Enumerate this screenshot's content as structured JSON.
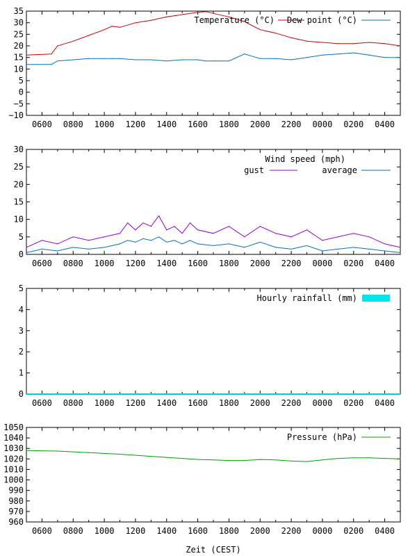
{
  "xlabel": "Zeit (CEST)",
  "x_ticks": [
    "0600",
    "0800",
    "1000",
    "1200",
    "1400",
    "1600",
    "1800",
    "2000",
    "2200",
    "0000",
    "0200",
    "0400"
  ],
  "x_range_hours": [
    5.0,
    29.0
  ],
  "chart_data": [
    {
      "type": "line",
      "name": "temperature-chart",
      "ylim": [
        -10,
        35
      ],
      "y_ticks": [
        "35",
        "30",
        "25",
        "20",
        "15",
        "10",
        "5",
        "0",
        "−5",
        "−10"
      ],
      "y_tick_values": [
        35,
        30,
        25,
        20,
        15,
        10,
        5,
        0,
        -5,
        -10
      ],
      "legend": "top-right",
      "x_hours": [
        5,
        6.6,
        7,
        8,
        9,
        10,
        10.5,
        11,
        12,
        13,
        14,
        15,
        16,
        16.5,
        17,
        18,
        19,
        20,
        21,
        22,
        23,
        24,
        25,
        26,
        27,
        28,
        29
      ],
      "series": [
        {
          "name": "Temperature (°C)",
          "color": "#cc0000",
          "values": [
            16,
            16.5,
            20,
            22,
            24.5,
            27,
            28.5,
            28,
            30,
            31,
            32.5,
            33.5,
            34.5,
            34.8,
            34,
            32.5,
            30.5,
            27,
            25.5,
            23.5,
            22,
            21.5,
            21,
            21,
            21.5,
            21,
            20
          ]
        },
        {
          "name": "Dew point (°C)",
          "color": "#0070c0",
          "values": [
            12,
            12,
            13.5,
            14,
            14.5,
            14.5,
            14.5,
            14.5,
            14,
            14,
            13.5,
            14,
            14,
            13.5,
            13.5,
            13.5,
            16.5,
            14.5,
            14.5,
            14,
            15,
            16,
            16.5,
            17,
            16,
            15,
            15
          ]
        }
      ]
    },
    {
      "type": "line",
      "name": "wind-chart",
      "title": "Wind speed (mph)",
      "ylim": [
        0,
        30
      ],
      "y_ticks": [
        "30",
        "25",
        "20",
        "15",
        "10",
        "5",
        "0"
      ],
      "y_tick_values": [
        30,
        25,
        20,
        15,
        10,
        5,
        0
      ],
      "legend": "top-right",
      "x_hours": [
        5,
        6,
        7,
        8,
        9,
        10,
        11,
        11.5,
        12,
        12.5,
        13,
        13.5,
        14,
        14.5,
        15,
        15.5,
        16,
        17,
        18,
        19,
        20,
        21,
        22,
        23,
        24,
        25,
        26,
        27,
        28,
        29
      ],
      "series": [
        {
          "name": "gust",
          "color": "#9400d3",
          "values": [
            2,
            4,
            3,
            5,
            4,
            5,
            6,
            9,
            7,
            9,
            8,
            11,
            7,
            8,
            6,
            9,
            7,
            6,
            8,
            5,
            8,
            6,
            5,
            7,
            4,
            5,
            6,
            5,
            3,
            2
          ]
        },
        {
          "name": "average",
          "color": "#0070c0",
          "values": [
            0.5,
            1.5,
            1,
            2,
            1.5,
            2,
            3,
            4,
            3.5,
            4.5,
            4,
            5,
            3.5,
            4,
            3,
            4,
            3,
            2.5,
            3,
            2,
            3.5,
            2,
            1.5,
            2.5,
            1,
            1.5,
            2,
            1.5,
            1,
            0.5
          ]
        }
      ]
    },
    {
      "type": "bar",
      "name": "rainfall-chart",
      "ylim": [
        0,
        5
      ],
      "y_ticks": [
        "5",
        "4",
        "3",
        "2",
        "1",
        "0"
      ],
      "y_tick_values": [
        5,
        4,
        3,
        2,
        1,
        0
      ],
      "legend": "top-right",
      "series": [
        {
          "name": "Hourly rainfall (mm)",
          "color": "#00e5ee",
          "values": [
            0
          ]
        }
      ]
    },
    {
      "type": "line",
      "name": "pressure-chart",
      "ylim": [
        960,
        1050
      ],
      "y_ticks": [
        "1050",
        "1040",
        "1030",
        "1020",
        "1010",
        "1000",
        "990",
        "980",
        "970",
        "960"
      ],
      "y_tick_values": [
        1050,
        1040,
        1030,
        1020,
        1010,
        1000,
        990,
        980,
        970,
        960
      ],
      "legend": "top-right",
      "x_hours": [
        5,
        7,
        9,
        11,
        13,
        15,
        16,
        17,
        18,
        19,
        20,
        21,
        22,
        23,
        24,
        25,
        26,
        27,
        28,
        29
      ],
      "series": [
        {
          "name": "Pressure (hPa)",
          "color": "#00a000",
          "values": [
            1028,
            1027.5,
            1026,
            1024.5,
            1022.5,
            1020.5,
            1019.5,
            1019,
            1018.5,
            1018.5,
            1019.5,
            1019,
            1018,
            1017.5,
            1019,
            1020.5,
            1021,
            1021,
            1020.5,
            1020
          ]
        }
      ]
    }
  ]
}
